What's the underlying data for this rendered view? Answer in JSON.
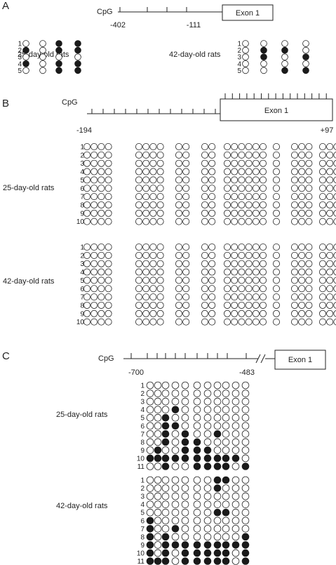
{
  "colors": {
    "methylated": "#1a1a1a",
    "unmethylated": "#ffffff",
    "stroke": "#222222"
  },
  "panels": [
    {
      "letter": "A",
      "cpg_label": "CpG",
      "exon_label": "Exon 1",
      "positions": [
        "-402",
        "-111"
      ],
      "groups": [
        {
          "label": "25-day-old rats",
          "clones": [
            {
              "n": "1",
              "sites": [
                0,
                0,
                1,
                1
              ]
            },
            {
              "n": "2",
              "sites": [
                1,
                0,
                1,
                1
              ]
            },
            {
              "n": "3",
              "sites": [
                0,
                0,
                0,
                0
              ]
            },
            {
              "n": "4",
              "sites": [
                1,
                0,
                1,
                1
              ]
            },
            {
              "n": "5",
              "sites": [
                0,
                0,
                1,
                1
              ]
            }
          ]
        },
        {
          "label": "42-day-old rats",
          "clones": [
            {
              "n": "1",
              "sites": [
                0,
                0,
                0,
                0
              ]
            },
            {
              "n": "2",
              "sites": [
                0,
                1,
                1,
                0
              ]
            },
            {
              "n": "3",
              "sites": [
                0,
                1,
                0,
                1
              ]
            },
            {
              "n": "4",
              "sites": [
                0,
                0,
                0,
                0
              ]
            },
            {
              "n": "5",
              "sites": [
                0,
                0,
                1,
                1
              ]
            }
          ]
        }
      ]
    },
    {
      "letter": "B",
      "cpg_label": "CpG",
      "exon_label": "Exon 1",
      "positions": [
        "-194",
        "+97"
      ],
      "site_count": 29,
      "groups": [
        {
          "label": "25-day-old rats",
          "clones": [
            "1",
            "2",
            "3",
            "4",
            "5",
            "6",
            "7",
            "8",
            "9",
            "10"
          ],
          "methylated": []
        },
        {
          "label": "42-day-old rats",
          "clones": [
            "1",
            "2",
            "3",
            "4",
            "5",
            "6",
            "7",
            "8",
            "9",
            "10"
          ],
          "methylated": []
        }
      ]
    },
    {
      "letter": "C",
      "cpg_label": "CpG",
      "exon_label": "Exon 1",
      "positions": [
        "-700",
        "-483"
      ],
      "groups": [
        {
          "label": "25-day-old rats",
          "clones": [
            {
              "n": "1",
              "sites": [
                0,
                0,
                0,
                0,
                0,
                0,
                0,
                0,
                0,
                0,
                0
              ]
            },
            {
              "n": "2",
              "sites": [
                0,
                0,
                0,
                0,
                0,
                0,
                0,
                0,
                0,
                0,
                0
              ]
            },
            {
              "n": "3",
              "sites": [
                0,
                0,
                0,
                0,
                0,
                0,
                0,
                0,
                0,
                0,
                0
              ]
            },
            {
              "n": "4",
              "sites": [
                0,
                0,
                0,
                1,
                0,
                0,
                0,
                0,
                0,
                0,
                0
              ]
            },
            {
              "n": "5",
              "sites": [
                0,
                0,
                1,
                0,
                0,
                0,
                0,
                0,
                0,
                0,
                0
              ]
            },
            {
              "n": "6",
              "sites": [
                0,
                0,
                1,
                1,
                0,
                0,
                0,
                0,
                0,
                0,
                0
              ]
            },
            {
              "n": "7",
              "sites": [
                0,
                0,
                1,
                0,
                1,
                0,
                0,
                1,
                0,
                0,
                0
              ]
            },
            {
              "n": "8",
              "sites": [
                0,
                0,
                1,
                0,
                1,
                1,
                0,
                0,
                0,
                0,
                0
              ]
            },
            {
              "n": "9",
              "sites": [
                0,
                1,
                0,
                0,
                1,
                1,
                1,
                0,
                0,
                0,
                0
              ]
            },
            {
              "n": "10",
              "sites": [
                1,
                1,
                1,
                1,
                1,
                1,
                1,
                1,
                1,
                1,
                0
              ]
            },
            {
              "n": "11",
              "sites": [
                0,
                0,
                1,
                0,
                0,
                1,
                1,
                1,
                1,
                0,
                1
              ]
            }
          ]
        },
        {
          "label": "42-day-old rats",
          "clones": [
            {
              "n": "1",
              "sites": [
                0,
                0,
                0,
                0,
                0,
                0,
                0,
                1,
                1,
                0,
                0
              ]
            },
            {
              "n": "2",
              "sites": [
                0,
                0,
                0,
                0,
                0,
                0,
                0,
                1,
                0,
                0,
                0
              ]
            },
            {
              "n": "3",
              "sites": [
                0,
                0,
                0,
                0,
                0,
                0,
                0,
                0,
                0,
                0,
                0
              ]
            },
            {
              "n": "4",
              "sites": [
                0,
                0,
                0,
                0,
                0,
                0,
                0,
                0,
                0,
                0,
                0
              ]
            },
            {
              "n": "5",
              "sites": [
                0,
                0,
                0,
                0,
                0,
                0,
                0,
                1,
                1,
                0,
                0
              ]
            },
            {
              "n": "6",
              "sites": [
                1,
                0,
                0,
                0,
                0,
                0,
                0,
                0,
                0,
                0,
                0
              ]
            },
            {
              "n": "7",
              "sites": [
                1,
                0,
                0,
                1,
                0,
                0,
                0,
                0,
                0,
                0,
                0
              ]
            },
            {
              "n": "8",
              "sites": [
                1,
                0,
                1,
                0,
                0,
                0,
                0,
                0,
                0,
                0,
                1
              ]
            },
            {
              "n": "9",
              "sites": [
                1,
                0,
                1,
                1,
                1,
                1,
                1,
                1,
                1,
                1,
                1
              ]
            },
            {
              "n": "10",
              "sites": [
                1,
                0,
                1,
                0,
                1,
                1,
                1,
                1,
                1,
                0,
                1
              ]
            },
            {
              "n": "11",
              "sites": [
                1,
                1,
                1,
                0,
                1,
                1,
                1,
                1,
                1,
                0,
                1
              ]
            }
          ]
        }
      ]
    }
  ]
}
